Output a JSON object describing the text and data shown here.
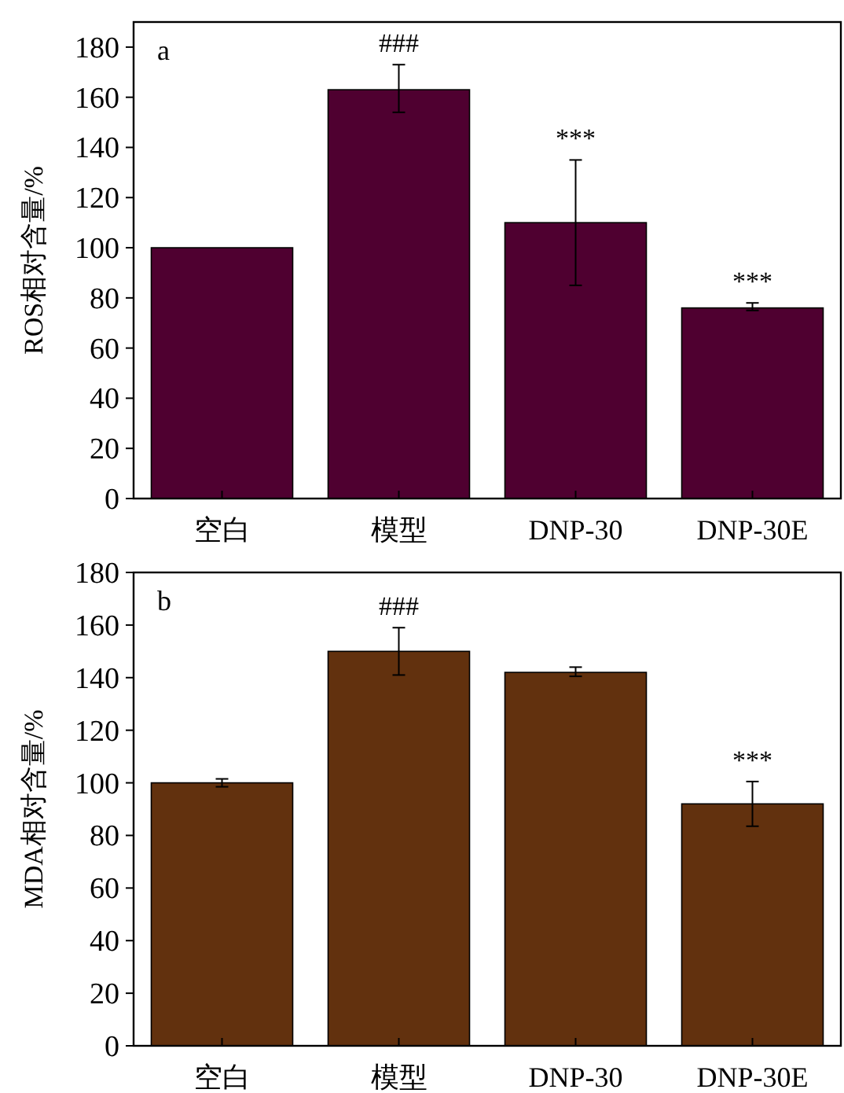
{
  "chart_data": [
    {
      "type": "bar",
      "categories": [
        "空白",
        "模型",
        "DNP-30",
        "DNP-30E"
      ],
      "ylabel": "ROS相对含量/%",
      "ylim": [
        0,
        190
      ],
      "yticks": [
        0,
        20,
        40,
        60,
        80,
        100,
        120,
        140,
        160,
        180
      ],
      "color": "#4f0030",
      "values": [
        100,
        163,
        110,
        76
      ],
      "errors": [
        null,
        [
          154,
          173
        ],
        [
          85,
          135
        ],
        [
          75,
          78
        ]
      ],
      "value_labels": [
        null,
        "###",
        "***",
        "***"
      ],
      "annotations": [
        "a"
      ]
    },
    {
      "type": "bar",
      "categories": [
        "空白",
        "模型",
        "DNP-30",
        "DNP-30E"
      ],
      "ylabel": "MDA相对含量/%",
      "ylim": [
        0,
        180
      ],
      "yticks": [
        0,
        20,
        40,
        60,
        80,
        100,
        120,
        140,
        160,
        180
      ],
      "color": "#62310e",
      "values": [
        100,
        150,
        142,
        92
      ],
      "errors": [
        [
          98.5,
          101.5
        ],
        [
          141,
          159
        ],
        [
          140.5,
          144
        ],
        [
          83.5,
          100.5
        ]
      ],
      "value_labels": [
        null,
        "###",
        null,
        "***"
      ],
      "annotations": [
        "b"
      ]
    }
  ]
}
